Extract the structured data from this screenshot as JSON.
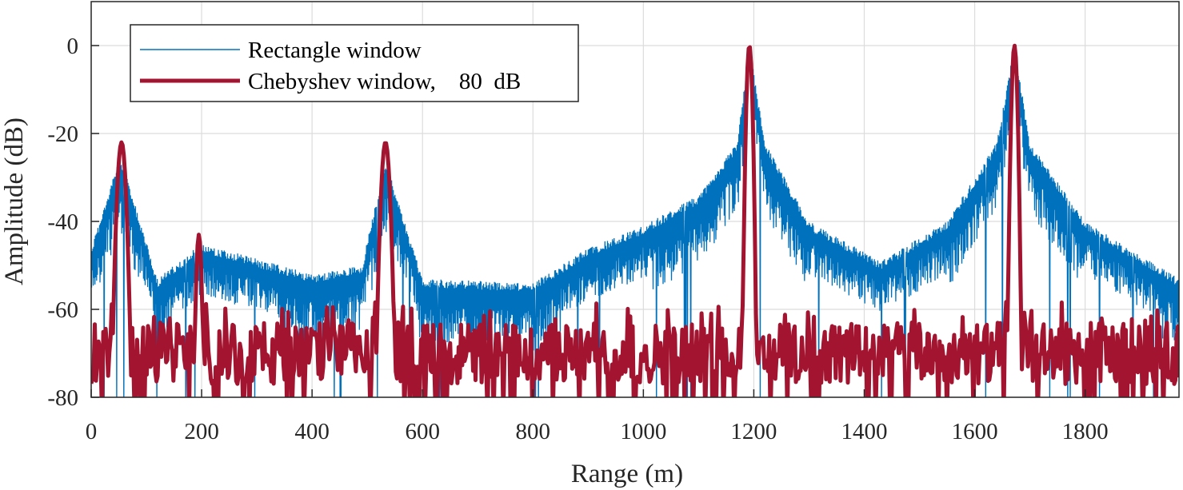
{
  "chart_data": {
    "type": "line",
    "title": "",
    "xlabel": "Range (m)",
    "ylabel": "Amplitude (dB)",
    "xlim": [
      0,
      1970
    ],
    "ylim": [
      -80,
      10
    ],
    "x_ticks": [
      0,
      200,
      400,
      600,
      800,
      1000,
      1200,
      1400,
      1600,
      1800
    ],
    "y_ticks": [
      0,
      -20,
      -40,
      -60,
      -80
    ],
    "x_tick_labels": [
      "0",
      "200",
      "400",
      "600",
      "800",
      "1000",
      "1200",
      "1400",
      "1600",
      "1800"
    ],
    "y_tick_labels": [
      "0",
      "-20",
      "-40",
      "-60",
      "-80"
    ],
    "grid": true,
    "legend_position": "top-left",
    "targets": [
      {
        "range": 55,
        "amplitude": -22
      },
      {
        "range": 195,
        "amplitude": -43
      },
      {
        "range": 533,
        "amplitude": -22
      },
      {
        "range": 1192,
        "amplitude": 0
      },
      {
        "range": 1672,
        "amplitude": 0
      }
    ],
    "series": [
      {
        "name": "Rectangle window",
        "color": "#0072BD",
        "noise_floor": -55,
        "envelope_x": [
          0,
          50,
          60,
          120,
          200,
          400,
          490,
          533,
          600,
          800,
          900,
          1000,
          1100,
          1170,
          1192,
          1220,
          1300,
          1430,
          1550,
          1640,
          1672,
          1700,
          1800,
          1970
        ],
        "envelope_y": [
          -46,
          -26,
          -28,
          -53,
          -45,
          -52,
          -50,
          -26,
          -53,
          -54,
          -46,
          -41,
          -34,
          -22,
          0,
          -22,
          -40,
          -49,
          -40,
          -22,
          0,
          -22,
          -40,
          -53
        ]
      },
      {
        "name": "Chebyshev window,    80  dB",
        "color": "#A2142F",
        "noise_floor": -70,
        "peaks_x": [
          55,
          195,
          533,
          1192,
          1672
        ],
        "peaks_y": [
          -22,
          -43,
          -22,
          0,
          0
        ]
      }
    ]
  },
  "legend": {
    "rect_label": "Rectangle window",
    "cheb_label": "Chebyshev window,    80  dB"
  }
}
